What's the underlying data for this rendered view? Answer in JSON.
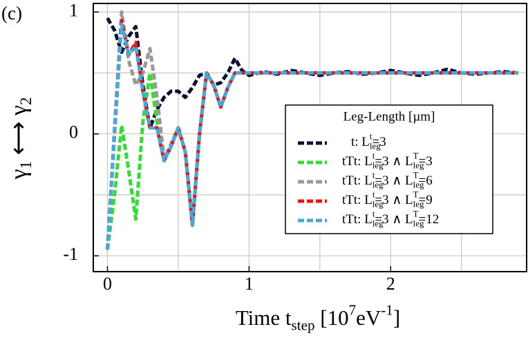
{
  "chart_data": {
    "type": "line",
    "title": "(c)",
    "xlabel": "Time t_{step} [10^{7}eV^{-1}]",
    "ylabel": "γ_{1} ⟷ γ_{2}",
    "legend_title": "Leg-Length [µm]",
    "x": [
      0,
      0.05,
      0.1,
      0.15,
      0.2,
      0.25,
      0.3,
      0.35,
      0.4,
      0.45,
      0.5,
      0.55,
      0.6,
      0.65,
      0.7,
      0.75,
      0.8,
      0.85,
      0.9,
      0.95,
      1.0,
      1.1,
      1.2,
      1.3,
      1.4,
      1.5,
      1.6,
      1.7,
      1.8,
      1.9,
      2.0,
      2.1,
      2.2,
      2.3,
      2.4,
      2.5,
      2.6,
      2.7,
      2.8,
      2.9
    ],
    "series": [
      {
        "name": "t: L_{leg}^{t}=3",
        "color": "#0b1030",
        "values": [
          0.95,
          0.85,
          0.67,
          0.8,
          0.88,
          0.4,
          0.05,
          0.2,
          0.3,
          0.35,
          0.35,
          0.3,
          0.38,
          0.48,
          0.5,
          0.4,
          0.42,
          0.5,
          0.62,
          0.52,
          0.48,
          0.51,
          0.49,
          0.52,
          0.5,
          0.48,
          0.5,
          0.51,
          0.49,
          0.5,
          0.52,
          0.5,
          0.48,
          0.5,
          0.53,
          0.5,
          0.49,
          0.5,
          0.51,
          0.5
        ]
      },
      {
        "name": "tTt: L_{leg}^{t}=3 ∧ L_{leg}^{T}=3",
        "color": "#33dd33",
        "values": [
          -0.95,
          -0.5,
          0.07,
          -0.3,
          -0.7,
          0.1,
          0.5,
          0.1,
          -0.22,
          -0.1,
          0.05,
          -0.15,
          -0.75,
          0.0,
          0.5,
          0.4,
          0.22,
          0.38,
          0.5,
          0.5,
          0.5,
          0.5,
          0.5,
          0.5,
          0.5,
          0.5,
          0.5,
          0.5,
          0.5,
          0.5,
          0.5,
          0.5,
          0.5,
          0.5,
          0.5,
          0.5,
          0.5,
          0.5,
          0.5,
          0.5
        ]
      },
      {
        "name": "tTt: L_{leg}^{t}=3 ∧ L_{leg}^{T}=6",
        "color": "#999999",
        "values": [
          -0.95,
          0.05,
          1.0,
          0.6,
          0.4,
          0.5,
          0.7,
          0.3,
          -0.2,
          -0.08,
          0.05,
          -0.15,
          -0.73,
          0.0,
          0.5,
          0.4,
          0.22,
          0.38,
          0.5,
          0.5,
          0.5,
          0.5,
          0.5,
          0.5,
          0.5,
          0.5,
          0.5,
          0.5,
          0.5,
          0.5,
          0.5,
          0.5,
          0.5,
          0.5,
          0.5,
          0.5,
          0.5,
          0.5,
          0.5,
          0.5
        ]
      },
      {
        "name": "tTt: L_{leg}^{t}=3 ∧ L_{leg}^{T}=9",
        "color": "#ee1111",
        "values": [
          -0.95,
          0.0,
          0.93,
          0.65,
          0.75,
          0.35,
          0.05,
          0.05,
          -0.22,
          -0.1,
          0.05,
          -0.15,
          -0.75,
          0.0,
          0.5,
          0.4,
          0.22,
          0.38,
          0.5,
          0.5,
          0.5,
          0.5,
          0.5,
          0.5,
          0.5,
          0.5,
          0.5,
          0.5,
          0.5,
          0.5,
          0.5,
          0.5,
          0.5,
          0.5,
          0.5,
          0.5,
          0.5,
          0.5,
          0.5,
          0.5
        ]
      },
      {
        "name": "tTt: L_{leg}^{t}=3 ∧ L_{leg}^{T}=12",
        "color": "#44aadd",
        "values": [
          -0.95,
          0.0,
          0.9,
          0.65,
          0.72,
          0.35,
          0.05,
          0.05,
          -0.22,
          -0.1,
          0.05,
          -0.15,
          -0.75,
          0.0,
          0.5,
          0.4,
          0.22,
          0.38,
          0.5,
          0.5,
          0.5,
          0.5,
          0.5,
          0.5,
          0.5,
          0.5,
          0.5,
          0.5,
          0.5,
          0.5,
          0.5,
          0.5,
          0.5,
          0.5,
          0.5,
          0.5,
          0.5,
          0.5,
          0.5,
          0.5
        ]
      }
    ],
    "xlim": [
      -0.1,
      2.96
    ],
    "ylim": [
      -1.13,
      1.07
    ],
    "xticks": [
      0,
      1,
      2
    ],
    "yticks": [
      -1,
      0,
      1
    ],
    "xgrid_minor": [
      0.5,
      1.5,
      2.5
    ],
    "ygrid_minor": [
      -0.5,
      0.5
    ],
    "grid": true,
    "legend": "lower right"
  }
}
